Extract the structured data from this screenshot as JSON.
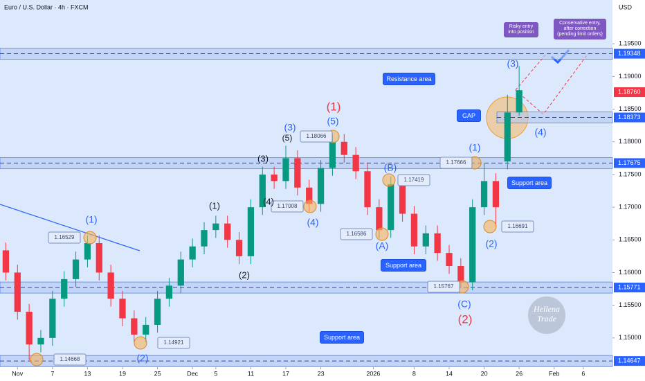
{
  "chart_data": {
    "type": "candlestick",
    "title": "Euro / U.S. Dollar · 4h · FXCM",
    "currency": "USD",
    "x": [
      -2,
      0,
      2,
      4,
      6,
      8,
      10,
      12,
      14,
      16,
      18,
      20,
      22,
      24,
      26,
      28,
      30,
      32,
      34,
      36,
      38,
      40,
      42,
      44,
      46,
      48,
      50,
      52,
      54,
      56,
      58,
      60,
      62,
      64,
      66,
      68,
      70,
      72,
      74,
      76,
      78,
      80,
      82,
      84,
      86
    ],
    "open": [
      1.1634,
      1.16,
      1.154,
      1.149,
      1.15,
      1.156,
      1.159,
      1.162,
      1.1645,
      1.16,
      1.156,
      1.153,
      1.1505,
      1.152,
      1.156,
      1.158,
      1.162,
      1.164,
      1.1665,
      1.1675,
      1.165,
      1.1625,
      1.17,
      1.175,
      1.174,
      1.1775,
      1.173,
      1.1705,
      1.176,
      1.18,
      1.178,
      1.1755,
      1.17,
      1.1665,
      1.1735,
      1.169,
      1.164,
      1.166,
      1.163,
      1.161,
      1.1585,
      1.17,
      1.174,
      1.177,
      1.1845
    ],
    "high": [
      1.1646,
      1.1612,
      1.1552,
      1.1512,
      1.1572,
      1.1602,
      1.1632,
      1.1657,
      1.1657,
      1.1612,
      1.1572,
      1.1542,
      1.1532,
      1.1572,
      1.1592,
      1.1632,
      1.1652,
      1.1677,
      1.1687,
      1.1687,
      1.1662,
      1.1712,
      1.1762,
      1.1762,
      1.1794,
      1.1787,
      1.1742,
      1.1772,
      1.1812,
      1.1812,
      1.1792,
      1.1767,
      1.1712,
      1.1747,
      1.1747,
      1.1702,
      1.1672,
      1.1672,
      1.1642,
      1.1622,
      1.1712,
      1.1767,
      1.1752,
      1.1872,
      1.1916
    ],
    "low": [
      1.1588,
      1.1528,
      1.1466,
      1.1478,
      1.1488,
      1.1548,
      1.1578,
      1.1608,
      1.1588,
      1.1548,
      1.1518,
      1.1493,
      1.1493,
      1.1508,
      1.1548,
      1.1568,
      1.1608,
      1.1628,
      1.1653,
      1.1638,
      1.1613,
      1.1613,
      1.1688,
      1.1728,
      1.1728,
      1.1718,
      1.1693,
      1.1693,
      1.1748,
      1.1768,
      1.1743,
      1.1688,
      1.1653,
      1.1653,
      1.1678,
      1.1628,
      1.1628,
      1.1618,
      1.1598,
      1.1577,
      1.1573,
      1.1688,
      1.1671,
      1.1758,
      1.184
    ],
    "close": [
      1.16,
      1.154,
      1.149,
      1.15,
      1.156,
      1.159,
      1.162,
      1.1645,
      1.16,
      1.156,
      1.153,
      1.1505,
      1.152,
      1.156,
      1.158,
      1.162,
      1.164,
      1.1665,
      1.1675,
      1.165,
      1.1625,
      1.17,
      1.175,
      1.174,
      1.1775,
      1.173,
      1.1705,
      1.176,
      1.18,
      1.178,
      1.1755,
      1.17,
      1.1665,
      1.1735,
      1.169,
      1.164,
      1.166,
      1.163,
      1.161,
      1.1585,
      1.17,
      1.174,
      1.17,
      1.1845,
      1.1879
    ],
    "up_color": "#089981",
    "down_color": "#f23645",
    "xlim": [
      -3,
      102
    ],
    "ylim": [
      1.14553,
      1.2017
    ],
    "xticks": [
      {
        "value": 0,
        "label": "Nov"
      },
      {
        "value": 6,
        "label": "7"
      },
      {
        "value": 12,
        "label": "13"
      },
      {
        "value": 18,
        "label": "19"
      },
      {
        "value": 24,
        "label": "25"
      },
      {
        "value": 30,
        "label": "Dec"
      },
      {
        "value": 34,
        "label": "5"
      },
      {
        "value": 40,
        "label": "11"
      },
      {
        "value": 46,
        "label": "17"
      },
      {
        "value": 52,
        "label": "23"
      },
      {
        "value": 61,
        "label": "2026"
      },
      {
        "value": 68,
        "label": "8"
      },
      {
        "value": 74,
        "label": "14"
      },
      {
        "value": 80,
        "label": "20"
      },
      {
        "value": 86,
        "label": "26"
      },
      {
        "value": 92,
        "label": "Feb"
      },
      {
        "value": 97,
        "label": "6"
      }
    ],
    "yticks": [
      {
        "value": 1.195,
        "label": "1.19500"
      },
      {
        "value": 1.19,
        "label": "1.19000"
      },
      {
        "value": 1.185,
        "label": "1.18500"
      },
      {
        "value": 1.18,
        "label": "1.18000"
      },
      {
        "value": 1.175,
        "label": "1.17500"
      },
      {
        "value": 1.17,
        "label": "1.17000"
      },
      {
        "value": 1.165,
        "label": "1.16500"
      },
      {
        "value": 1.16,
        "label": "1.16000"
      },
      {
        "value": 1.155,
        "label": "1.15500"
      },
      {
        "value": 1.15,
        "label": "1.15000"
      }
    ],
    "levels": [
      {
        "value": 1.19348,
        "label": "1.19348",
        "color": "#2962ff"
      },
      {
        "value": 1.1876,
        "label": "1.18760",
        "color": "#f23645"
      },
      {
        "value": 1.18373,
        "label": "1.18373",
        "color": "#2962ff"
      },
      {
        "value": 1.17675,
        "label": "1.17675",
        "color": "#2962ff"
      },
      {
        "value": 1.15771,
        "label": "1.15771",
        "color": "#2962ff"
      },
      {
        "value": 1.14647,
        "label": "1.14647",
        "color": "#2962ff"
      }
    ],
    "wave_labels": [
      "(1)",
      "(2)",
      "(1)",
      "(2)",
      "(3)",
      "(4)",
      "(3)",
      "(5)",
      "(4)",
      "(5)",
      "(1)",
      "(B)",
      "(A)",
      "(C)",
      "(2)",
      "(1)",
      "(2)",
      "(3)",
      "(4)"
    ],
    "price_tags": [
      1.16529,
      1.14921,
      1.14668,
      1.17008,
      1.18066,
      1.16586,
      1.17419,
      1.17666,
      1.15767,
      1.16691
    ],
    "callouts": [
      "Resistance area",
      "Support area",
      "Support area",
      "Support area",
      "GAP",
      "Risky entry into position",
      "Conservative entry, after correction (pending limit orders)"
    ],
    "watermark": "Hellena Trade"
  }
}
